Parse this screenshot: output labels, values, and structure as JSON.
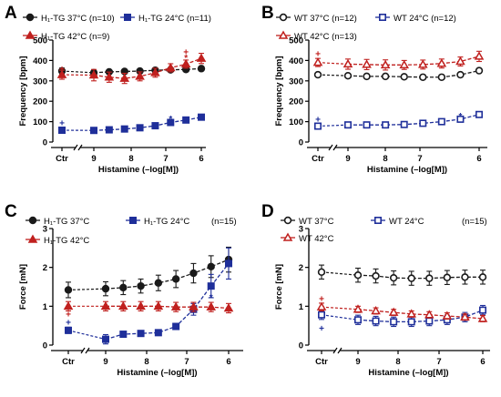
{
  "colors": {
    "black": "#1a1a1a",
    "blue": "#1f2f9a",
    "red": "#c0201e"
  },
  "chart_data": [
    {
      "panel": "A",
      "type": "line",
      "title": "",
      "xlabel": "Histamine (–log[M])",
      "ylabel": "Frequency [bpm]",
      "ylim": [
        0,
        500
      ],
      "yticks": [
        "0",
        "100",
        "200",
        "300",
        "400",
        "500"
      ],
      "xticks": [
        "Ctr",
        "9",
        "8",
        "7",
        "6"
      ],
      "x": [
        "Ctr",
        "10",
        "9",
        "8.5",
        "8",
        "7.5",
        "7",
        "6.5",
        "6"
      ],
      "series": [
        {
          "name": "H₁-TG 37°C (n=10)",
          "color": "black",
          "marker": "circle",
          "fill": "filled",
          "values": [
            348,
            340,
            344,
            346,
            348,
            352,
            354,
            356,
            360
          ],
          "errors": [
            15,
            10,
            8,
            8,
            8,
            8,
            8,
            8,
            10
          ]
        },
        {
          "name": "H₁-TG 24°C (n=11)",
          "color": "blue",
          "marker": "square",
          "fill": "filled",
          "values": [
            58,
            57,
            60,
            64,
            70,
            80,
            96,
            108,
            122
          ],
          "errors": [
            5,
            4,
            4,
            4,
            5,
            6,
            8,
            9,
            12
          ]
        },
        {
          "name": "H₁-TG 42°C (n=9)",
          "color": "red",
          "marker": "triangle",
          "fill": "filled",
          "values": [
            330,
            328,
            318,
            312,
            322,
            340,
            364,
            382,
            410
          ],
          "errors": [
            22,
            28,
            25,
            25,
            22,
            22,
            20,
            20,
            25
          ]
        }
      ],
      "annotations": [
        {
          "text": "+",
          "x_index": 0,
          "y": 92,
          "color": "blue"
        },
        {
          "text": "+",
          "x_index": 0,
          "y": 358,
          "color": "red"
        },
        {
          "text": "*",
          "x_index": 6,
          "y": 112,
          "color": "blue"
        },
        {
          "text": "*",
          "x_index": 7,
          "y": 410,
          "color": "red"
        },
        {
          "text": "+",
          "x_index": 7,
          "y": 440,
          "color": "red"
        }
      ]
    },
    {
      "panel": "B",
      "type": "line",
      "title": "",
      "xlabel": "Histamine (–log[M])",
      "ylabel": "Frequency [bpm]",
      "ylim": [
        0,
        500
      ],
      "yticks": [
        "0",
        "100",
        "200",
        "300",
        "400",
        "500"
      ],
      "xticks": [
        "Ctr",
        "9",
        "8",
        "7",
        "6"
      ],
      "x": [
        "Ctr",
        "10",
        "9",
        "8.5",
        "8",
        "7.5",
        "7",
        "6.5",
        "6"
      ],
      "series": [
        {
          "name": "WT 37°C (n=12)",
          "color": "black",
          "marker": "circle",
          "fill": "open",
          "values": [
            330,
            325,
            322,
            322,
            320,
            318,
            318,
            330,
            350
          ],
          "errors": [
            8,
            8,
            8,
            8,
            8,
            8,
            8,
            8,
            10
          ]
        },
        {
          "name": "WT 24°C (n=12)",
          "color": "blue",
          "marker": "square",
          "fill": "open",
          "values": [
            78,
            84,
            84,
            84,
            86,
            92,
            100,
            112,
            135
          ],
          "errors": [
            10,
            6,
            6,
            6,
            6,
            6,
            6,
            8,
            10
          ]
        },
        {
          "name": "WT 42°C (n=13)",
          "color": "red",
          "marker": "triangle",
          "fill": "open",
          "values": [
            390,
            382,
            380,
            378,
            378,
            380,
            385,
            395,
            420
          ],
          "errors": [
            20,
            25,
            25,
            25,
            22,
            22,
            22,
            22,
            25
          ]
        }
      ],
      "annotations": [
        {
          "text": "+",
          "x_index": 0,
          "y": 110,
          "color": "blue"
        },
        {
          "text": "+",
          "x_index": 0,
          "y": 430,
          "color": "red"
        },
        {
          "text": "*",
          "x_index": 7,
          "y": 125,
          "color": "blue"
        }
      ]
    },
    {
      "panel": "C",
      "type": "line",
      "title": "",
      "xlabel": "Histamine (–log[M])",
      "ylabel": "Force [mN]",
      "ylim": [
        0,
        3
      ],
      "yticks": [
        "0",
        "1",
        "2",
        "3"
      ],
      "xticks": [
        "Ctr",
        "9",
        "8",
        "7",
        "6"
      ],
      "legend_note": "(n=15)",
      "x": [
        "Ctr",
        "10",
        "9",
        "8.5",
        "8",
        "7.5",
        "7",
        "6.5",
        "6"
      ],
      "series": [
        {
          "name": "H₁-TG 37°C",
          "color": "black",
          "marker": "circle",
          "fill": "filled",
          "values": [
            1.42,
            1.45,
            1.48,
            1.52,
            1.6,
            1.7,
            1.85,
            2.02,
            2.2
          ],
          "errors": [
            0.2,
            0.18,
            0.18,
            0.18,
            0.2,
            0.22,
            0.25,
            0.28,
            0.32
          ]
        },
        {
          "name": "H₁-TG 24°C",
          "color": "blue",
          "marker": "square",
          "fill": "filled",
          "values": [
            0.38,
            0.15,
            0.28,
            0.3,
            0.32,
            0.48,
            0.92,
            1.52,
            2.1
          ],
          "errors": [
            0.08,
            0.12,
            0.06,
            0.05,
            0.05,
            0.08,
            0.15,
            0.3,
            0.4
          ]
        },
        {
          "name": "H₁-TG 42°C",
          "color": "red",
          "marker": "triangle",
          "fill": "filled",
          "values": [
            1.0,
            1.0,
            1.0,
            1.0,
            1.0,
            0.98,
            0.98,
            0.98,
            0.95
          ],
          "errors": [
            0.12,
            0.12,
            0.12,
            0.12,
            0.12,
            0.12,
            0.12,
            0.12,
            0.12
          ]
        }
      ],
      "annotations": [
        {
          "text": "+",
          "x_index": 0,
          "y": 0.58,
          "color": "blue"
        },
        {
          "text": "+",
          "x_index": 0,
          "y": 0.78,
          "color": "red"
        },
        {
          "text": "*",
          "x_index": 7,
          "y": 1.22,
          "color": "blue"
        }
      ]
    },
    {
      "panel": "D",
      "type": "line",
      "title": "",
      "xlabel": "Histamine (–log[M])",
      "ylabel": "Force [mN]",
      "ylim": [
        0,
        3
      ],
      "yticks": [
        "0",
        "1",
        "2",
        "3"
      ],
      "xticks": [
        "Ctr",
        "9",
        "8",
        "7",
        "6"
      ],
      "legend_note": "(n=15)",
      "x": [
        "Ctr",
        "10",
        "9",
        "8.5",
        "8",
        "7.5",
        "7",
        "6.5",
        "6"
      ],
      "series": [
        {
          "name": "WT 37°C",
          "color": "black",
          "marker": "circle",
          "fill": "open",
          "values": [
            1.88,
            1.8,
            1.78,
            1.73,
            1.72,
            1.72,
            1.74,
            1.75,
            1.75
          ],
          "errors": [
            0.18,
            0.18,
            0.18,
            0.18,
            0.18,
            0.18,
            0.18,
            0.18,
            0.18
          ]
        },
        {
          "name": "WT 24°C",
          "color": "blue",
          "marker": "square",
          "fill": "open",
          "values": [
            0.78,
            0.65,
            0.62,
            0.6,
            0.6,
            0.62,
            0.65,
            0.72,
            0.9
          ],
          "errors": [
            0.12,
            0.12,
            0.12,
            0.12,
            0.12,
            0.12,
            0.12,
            0.12,
            0.12
          ]
        },
        {
          "name": "WT 42°C",
          "color": "red",
          "marker": "triangle",
          "fill": "open",
          "values": [
            0.98,
            0.92,
            0.88,
            0.84,
            0.8,
            0.78,
            0.75,
            0.72,
            0.68
          ],
          "errors": [
            0.1,
            0.08,
            0.08,
            0.08,
            0.08,
            0.08,
            0.08,
            0.08,
            0.08
          ]
        }
      ],
      "annotations": [
        {
          "text": "+",
          "x_index": 0,
          "y": 0.42,
          "color": "blue"
        },
        {
          "text": "+",
          "x_index": 0,
          "y": 1.18,
          "color": "red"
        }
      ]
    }
  ]
}
